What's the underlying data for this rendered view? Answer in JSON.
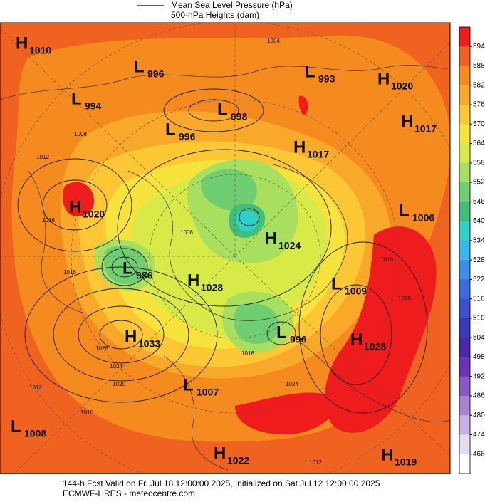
{
  "legend": {
    "line1": "Mean Sea Level Pressure (hPa)",
    "line2": "500-hPa Heights (dam)"
  },
  "pressure_centers": [
    {
      "letter": "H",
      "value": "1010"
    },
    {
      "letter": "L",
      "value": "996"
    },
    {
      "letter": "L",
      "value": "993"
    },
    {
      "letter": "H",
      "value": "1020"
    },
    {
      "letter": "L",
      "value": "994"
    },
    {
      "letter": "L",
      "value": "998"
    },
    {
      "letter": "H",
      "value": "1017"
    },
    {
      "letter": "L",
      "value": "996"
    },
    {
      "letter": "H",
      "value": "1017"
    },
    {
      "letter": "H",
      "value": "1020"
    },
    {
      "letter": "L",
      "value": "1006"
    },
    {
      "letter": "H",
      "value": "1024"
    },
    {
      "letter": "L",
      "value": "986"
    },
    {
      "letter": "H",
      "value": "1028"
    },
    {
      "letter": "L",
      "value": "1009"
    },
    {
      "letter": "L",
      "value": "996"
    },
    {
      "letter": "H",
      "value": "1028"
    },
    {
      "letter": "H",
      "value": "1033"
    },
    {
      "letter": "L",
      "value": "1007"
    },
    {
      "letter": "L",
      "value": "1008"
    },
    {
      "letter": "H",
      "value": "1022"
    },
    {
      "letter": "H",
      "value": "1019"
    }
  ],
  "contour_labels": [
    "1004",
    "1008",
    "1012",
    "1016",
    "1008",
    "1016",
    "1028",
    "1024",
    "1020",
    "1012",
    "1016",
    "1016",
    "1016",
    "1020",
    "1024",
    "1012"
  ],
  "colorbar": {
    "labels": [
      "594",
      "588",
      "582",
      "576",
      "570",
      "564",
      "558",
      "552",
      "546",
      "540",
      "534",
      "528",
      "522",
      "516",
      "510",
      "504",
      "498",
      "492",
      "486",
      "480",
      "474",
      "468"
    ],
    "colors": [
      "#ee1c1c",
      "#f0621f",
      "#f58a1f",
      "#f8a92a",
      "#fbc735",
      "#f6e33c",
      "#d8ea47",
      "#a8df5e",
      "#6fce72",
      "#3fbf7a",
      "#2fd0c8",
      "#37b8e8",
      "#3a90e6",
      "#3a6cdc",
      "#3b4fcf",
      "#3a3ab8",
      "#4a28a8",
      "#6a34b4",
      "#8a58c4",
      "#a884d2",
      "#c8b2e2",
      "#e4dcf2",
      "#ffffff"
    ]
  },
  "footer": {
    "line1": "144-h Fcst Valid on Fri Jul 18 12:00:00 2025, Initialized on Sat Jul 12 12:00:00 2025",
    "line2": "ECMWF-HRES - meteocentre.com"
  }
}
